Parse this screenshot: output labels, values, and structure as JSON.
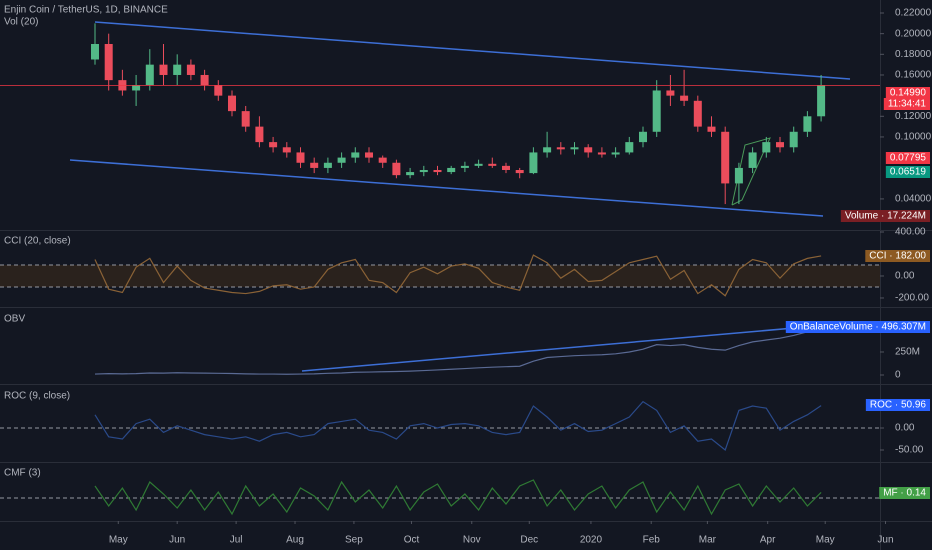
{
  "chart_data": [
    {
      "type": "candlestick",
      "title": "Enjin Coin / TetherUS, 1D, BINANCE",
      "subtitle": "Vol (20)",
      "up_color": "#53b987",
      "down_color": "#eb4d5c",
      "open": [
        0.175,
        0.19,
        0.155,
        0.145,
        0.15,
        0.17,
        0.16,
        0.17,
        0.16,
        0.15,
        0.14,
        0.125,
        0.11,
        0.095,
        0.09,
        0.085,
        0.075,
        0.07,
        0.075,
        0.08,
        0.085,
        0.08,
        0.075,
        0.063,
        0.066,
        0.068,
        0.066,
        0.07,
        0.072,
        0.074,
        0.072,
        0.068,
        0.065,
        0.085,
        0.09,
        0.088,
        0.09,
        0.085,
        0.083,
        0.085,
        0.095,
        0.105,
        0.145,
        0.14,
        0.135,
        0.11,
        0.105,
        0.055,
        0.07,
        0.085,
        0.095,
        0.09,
        0.105,
        0.12
      ],
      "high": [
        0.21,
        0.2,
        0.165,
        0.16,
        0.185,
        0.19,
        0.18,
        0.175,
        0.165,
        0.155,
        0.145,
        0.13,
        0.12,
        0.1,
        0.095,
        0.09,
        0.08,
        0.08,
        0.085,
        0.09,
        0.09,
        0.082,
        0.078,
        0.07,
        0.072,
        0.072,
        0.072,
        0.076,
        0.078,
        0.08,
        0.075,
        0.07,
        0.09,
        0.105,
        0.095,
        0.095,
        0.093,
        0.09,
        0.09,
        0.1,
        0.11,
        0.155,
        0.16,
        0.165,
        0.14,
        0.12,
        0.11,
        0.075,
        0.09,
        0.1,
        0.1,
        0.11,
        0.125,
        0.16
      ],
      "low": [
        0.17,
        0.145,
        0.14,
        0.13,
        0.145,
        0.15,
        0.15,
        0.155,
        0.145,
        0.135,
        0.12,
        0.105,
        0.09,
        0.085,
        0.08,
        0.07,
        0.065,
        0.065,
        0.07,
        0.075,
        0.075,
        0.07,
        0.06,
        0.06,
        0.062,
        0.063,
        0.064,
        0.066,
        0.07,
        0.07,
        0.065,
        0.06,
        0.064,
        0.08,
        0.083,
        0.083,
        0.08,
        0.08,
        0.08,
        0.083,
        0.09,
        0.1,
        0.13,
        0.13,
        0.105,
        0.1,
        0.035,
        0.035,
        0.065,
        0.08,
        0.085,
        0.085,
        0.1,
        0.115
      ],
      "close": [
        0.19,
        0.155,
        0.145,
        0.15,
        0.17,
        0.16,
        0.17,
        0.16,
        0.15,
        0.14,
        0.125,
        0.11,
        0.095,
        0.09,
        0.085,
        0.075,
        0.07,
        0.075,
        0.08,
        0.085,
        0.08,
        0.075,
        0.063,
        0.066,
        0.068,
        0.066,
        0.07,
        0.072,
        0.074,
        0.072,
        0.068,
        0.065,
        0.085,
        0.09,
        0.088,
        0.09,
        0.085,
        0.083,
        0.085,
        0.095,
        0.105,
        0.145,
        0.14,
        0.135,
        0.11,
        0.105,
        0.055,
        0.07,
        0.085,
        0.095,
        0.09,
        0.105,
        0.12,
        0.1499
      ],
      "xlim": [
        -6.934,
        57.299
      ],
      "xticks": [
        {
          "value": 1.7,
          "label": "May"
        },
        {
          "value": 6.0,
          "label": "Jun"
        },
        {
          "value": 10.3,
          "label": "Jul"
        },
        {
          "value": 14.6,
          "label": "Aug"
        },
        {
          "value": 18.9,
          "label": "Sep"
        },
        {
          "value": 23.1,
          "label": "Oct"
        },
        {
          "value": 27.5,
          "label": "Nov"
        },
        {
          "value": 31.7,
          "label": "Dec"
        },
        {
          "value": 36.2,
          "label": "2020"
        },
        {
          "value": 40.6,
          "label": "Feb"
        },
        {
          "value": 44.7,
          "label": "Mar"
        },
        {
          "value": 49.1,
          "label": "Apr"
        },
        {
          "value": 53.3,
          "label": "May"
        },
        {
          "value": 57.7,
          "label": "Jun"
        }
      ],
      "ylim": [
        0.0099,
        0.2326
      ],
      "yticks": [
        {
          "value": 0.22,
          "label": "0.22000"
        },
        {
          "value": 0.2,
          "label": "0.20000"
        },
        {
          "value": 0.18,
          "label": "0.18000"
        },
        {
          "value": 0.16,
          "label": "0.16000"
        },
        {
          "value": 0.12,
          "label": "0.12000"
        },
        {
          "value": 0.1,
          "label": "0.10000"
        },
        {
          "value": 0.04,
          "label": "0.04000"
        }
      ],
      "badges": [
        {
          "text": "0.14990",
          "color": "#f23645"
        },
        {
          "text": "11:34:41",
          "color": "#f23645"
        },
        {
          "text": "0.07795",
          "color": "#f23645"
        },
        {
          "text": "0.06519",
          "color": "#089981"
        },
        {
          "text": "Volume · 17.224M",
          "color": "#7a1f24"
        }
      ]
    },
    {
      "type": "line",
      "title": "CCI (20, close)",
      "color": "#8a6236",
      "band_fill": "#3a2a1a",
      "bands": [
        100,
        -100
      ],
      "values": [
        150,
        -120,
        -150,
        80,
        160,
        -60,
        90,
        -40,
        -110,
        -130,
        -150,
        -160,
        -140,
        -90,
        -80,
        -120,
        -100,
        60,
        120,
        150,
        -40,
        -60,
        -150,
        30,
        80,
        20,
        90,
        110,
        70,
        -60,
        -100,
        -130,
        190,
        120,
        -20,
        60,
        -50,
        -40,
        40,
        120,
        150,
        180,
        -30,
        50,
        -160,
        -80,
        -180,
        60,
        150,
        120,
        -20,
        110,
        160,
        182
      ],
      "ylim": [
        -273,
        409
      ],
      "yticks": [
        {
          "value": 400,
          "label": "400.00"
        },
        {
          "value": 0,
          "label": "0.00"
        },
        {
          "value": -200,
          "label": "-200.00"
        }
      ],
      "badges": [
        {
          "text": "CCI · 182.00",
          "color": "#8d5a22"
        }
      ]
    },
    {
      "type": "line",
      "title": "OBV",
      "color": "#5a6a94",
      "values": [
        10,
        15,
        12,
        15,
        22,
        20,
        24,
        22,
        20,
        18,
        16,
        12,
        10,
        10,
        8,
        10,
        12,
        18,
        22,
        30,
        32,
        35,
        38,
        42,
        48,
        55,
        62,
        70,
        78,
        85,
        90,
        95,
        150,
        190,
        200,
        210,
        215,
        220,
        230,
        250,
        280,
        330,
        320,
        330,
        300,
        280,
        270,
        320,
        360,
        380,
        400,
        430,
        470,
        496
      ],
      "ylim": [
        -87,
        717
      ],
      "yticks": [
        {
          "value": 250,
          "label": "250M"
        },
        0
      ],
      "badges": [
        {
          "text": "OnBalanceVolume · 496.307M",
          "color": "#2962ff"
        }
      ]
    },
    {
      "type": "line",
      "title": "ROC (9, close)",
      "color": "#2a4a8a",
      "bands": [
        0
      ],
      "values": [
        30,
        -20,
        -25,
        10,
        20,
        -10,
        5,
        -5,
        -15,
        -20,
        -25,
        -20,
        -30,
        -15,
        -10,
        -20,
        -15,
        10,
        15,
        20,
        -5,
        -10,
        -25,
        5,
        10,
        0,
        8,
        10,
        5,
        -10,
        -15,
        -10,
        50,
        25,
        -5,
        10,
        -8,
        -5,
        10,
        25,
        60,
        40,
        -10,
        5,
        -30,
        -25,
        -50,
        40,
        50,
        45,
        -5,
        15,
        30,
        50.96
      ],
      "ylim": [
        -75,
        95.5
      ],
      "yticks": [
        {
          "value": 0,
          "label": "0.00"
        },
        {
          "value": -50,
          "label": "-50.00"
        }
      ],
      "badges": [
        {
          "text": "ROC · 50.96",
          "color": "#2962ff"
        }
      ]
    },
    {
      "type": "line",
      "title": "CMF (3)",
      "color": "#2f7a34",
      "bands": [
        0
      ],
      "values": [
        0.3,
        -0.2,
        0.25,
        -0.3,
        0.4,
        0.1,
        -0.25,
        0.2,
        -0.3,
        0.15,
        -0.4,
        0.3,
        -0.2,
        0.1,
        -0.35,
        0.25,
        0.05,
        -0.3,
        0.4,
        -0.1,
        0.2,
        -0.25,
        0.3,
        -0.3,
        0.15,
        0.35,
        -0.2,
        0.1,
        -0.3,
        0.25,
        -0.15,
        0.3,
        0.45,
        -0.2,
        0.2,
        -0.3,
        0.1,
        0.3,
        -0.25,
        0.2,
        0.4,
        -0.35,
        0.15,
        -0.3,
        0.3,
        -0.4,
        0.2,
        0.35,
        -0.2,
        0.3,
        -0.1,
        0.25,
        -0.2,
        0.14
      ],
      "ylim": [
        -0.575,
        0.875
      ],
      "yticks": [],
      "badges": [
        {
          "text": "MF · 0.14",
          "color": "#43a047"
        }
      ]
    }
  ]
}
